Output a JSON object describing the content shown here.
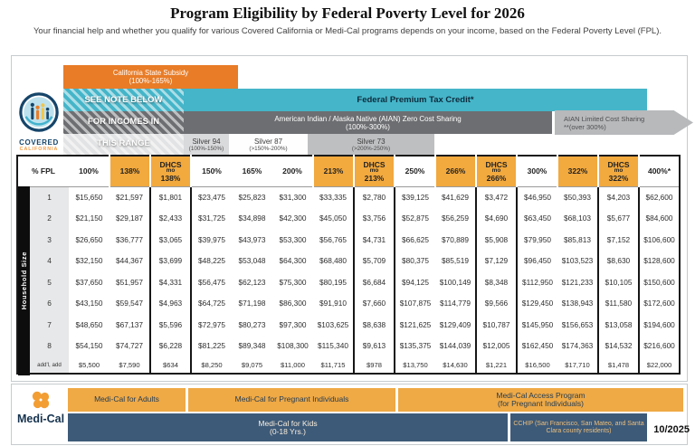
{
  "title": "Program Eligibility by Federal Poverty Level for 2026",
  "subtitle": "Your financial help and whether you qualify for various Covered California or Medi-Cal programs depends on your income, based on the Federal Poverty Level (FPL).",
  "logo": {
    "line1": "COVERED",
    "line2": "CALIFORNIA"
  },
  "bands": {
    "state_subsidy": {
      "label": "California State Subsidy",
      "range": "(100%-165%)"
    },
    "federal_ptc": "Federal Premium Tax Credit*",
    "aian_zero": {
      "label": "American Indian / Alaska Native (AIAN) Zero Cost Sharing",
      "range": "(100%-300%)"
    },
    "aian_limited": {
      "label": "AIAN Limited Cost Sharing",
      "range": "**(over 300%)"
    },
    "see_note": {
      "line1": "SEE NOTE BELOW",
      "line2": "FOR INCOMES IN",
      "line3": "THIS RANGE"
    },
    "silver_tiers": [
      {
        "name": "Silver 94",
        "range": "(100%-150%)"
      },
      {
        "name": "Silver 87",
        "range": "(>150%-200%)"
      },
      {
        "name": "Silver 73",
        "range": "(>200%-250%)"
      }
    ]
  },
  "household_axis_label": "Household Size",
  "table": {
    "columns": [
      {
        "lines": [
          "% FPL"
        ],
        "highlight": false
      },
      {
        "lines": [
          "100%"
        ],
        "highlight": false
      },
      {
        "lines": [
          "138%"
        ],
        "highlight": true
      },
      {
        "lines": [
          "DHCS",
          "mo",
          "138%"
        ],
        "highlight": true
      },
      {
        "lines": [
          "150%"
        ],
        "highlight": false
      },
      {
        "lines": [
          "165%"
        ],
        "highlight": false
      },
      {
        "lines": [
          "200%"
        ],
        "highlight": false
      },
      {
        "lines": [
          "213%"
        ],
        "highlight": true
      },
      {
        "lines": [
          "DHCS",
          "mo",
          "213%"
        ],
        "highlight": true
      },
      {
        "lines": [
          "250%"
        ],
        "highlight": false
      },
      {
        "lines": [
          "266%"
        ],
        "highlight": true
      },
      {
        "lines": [
          "DHCS",
          "mo",
          "266%"
        ],
        "highlight": true
      },
      {
        "lines": [
          "300%"
        ],
        "highlight": false
      },
      {
        "lines": [
          "322%"
        ],
        "highlight": true
      },
      {
        "lines": [
          "DHCS",
          "mo",
          "322%"
        ],
        "highlight": true
      },
      {
        "lines": [
          "400%*"
        ],
        "highlight": false
      }
    ],
    "thick_value_cols": [
      2,
      7,
      10,
      13
    ],
    "rows": [
      {
        "label": "1",
        "values": [
          "$15,650",
          "$21,597",
          "$1,801",
          "$23,475",
          "$25,823",
          "$31,300",
          "$33,335",
          "$2,780",
          "$39,125",
          "$41,629",
          "$3,472",
          "$46,950",
          "$50,393",
          "$4,203",
          "$62,600"
        ]
      },
      {
        "label": "2",
        "values": [
          "$21,150",
          "$29,187",
          "$2,433",
          "$31,725",
          "$34,898",
          "$42,300",
          "$45,050",
          "$3,756",
          "$52,875",
          "$56,259",
          "$4,690",
          "$63,450",
          "$68,103",
          "$5,677",
          "$84,600"
        ]
      },
      {
        "label": "3",
        "values": [
          "$26,650",
          "$36,777",
          "$3,065",
          "$39,975",
          "$43,973",
          "$53,300",
          "$56,765",
          "$4,731",
          "$66,625",
          "$70,889",
          "$5,908",
          "$79,950",
          "$85,813",
          "$7,152",
          "$106,600"
        ]
      },
      {
        "label": "4",
        "values": [
          "$32,150",
          "$44,367",
          "$3,699",
          "$48,225",
          "$53,048",
          "$64,300",
          "$68,480",
          "$5,709",
          "$80,375",
          "$85,519",
          "$7,129",
          "$96,450",
          "$103,523",
          "$8,630",
          "$128,600"
        ]
      },
      {
        "label": "5",
        "values": [
          "$37,650",
          "$51,957",
          "$4,331",
          "$56,475",
          "$62,123",
          "$75,300",
          "$80,195",
          "$6,684",
          "$94,125",
          "$100,149",
          "$8,348",
          "$112,950",
          "$121,233",
          "$10,105",
          "$150,600"
        ]
      },
      {
        "label": "6",
        "values": [
          "$43,150",
          "$59,547",
          "$4,963",
          "$64,725",
          "$71,198",
          "$86,300",
          "$91,910",
          "$7,660",
          "$107,875",
          "$114,779",
          "$9,566",
          "$129,450",
          "$138,943",
          "$11,580",
          "$172,600"
        ]
      },
      {
        "label": "7",
        "values": [
          "$48,650",
          "$67,137",
          "$5,596",
          "$72,975",
          "$80,273",
          "$97,300",
          "$103,625",
          "$8,638",
          "$121,625",
          "$129,409",
          "$10,787",
          "$145,950",
          "$156,653",
          "$13,058",
          "$194,600"
        ]
      },
      {
        "label": "8",
        "values": [
          "$54,150",
          "$74,727",
          "$6,228",
          "$81,225",
          "$89,348",
          "$108,300",
          "$115,340",
          "$9,613",
          "$135,375",
          "$144,039",
          "$12,005",
          "$162,450",
          "$174,363",
          "$14,532",
          "$216,600"
        ]
      },
      {
        "label": "add'l, add",
        "values": [
          "$5,500",
          "$7,590",
          "$634",
          "$8,250",
          "$9,075",
          "$11,000",
          "$11,715",
          "$978",
          "$13,750",
          "$14,630",
          "$1,221",
          "$16,500",
          "$17,710",
          "$1,478",
          "$22,000"
        ]
      }
    ]
  },
  "medical": {
    "brand": "Medi-Cal",
    "adults": "Medi-Cal for Adults",
    "pregnant": "Medi-Cal for Pregnant Individuals",
    "access": {
      "line1": "Medi-Cal Access Program",
      "line2": "(for Pregnant Individuals)"
    },
    "kids": {
      "line1": "Medi-Cal for Kids",
      "line2": "(0-18 Yrs.)"
    },
    "cchip": "CCHIP (San Francisco, San Mateo, and Santa Clara county residents)",
    "date": "10/2025"
  },
  "colors": {
    "subsidy_orange": "#E87C27",
    "header_amber": "#F2A93E",
    "teal": "#45B5C9",
    "dark_gray": "#6D6E71",
    "arrow_gray": "#B7B9BB",
    "medical_orange": "#EFA945",
    "medical_blue": "#3D5A78",
    "navy": "#16456A"
  }
}
